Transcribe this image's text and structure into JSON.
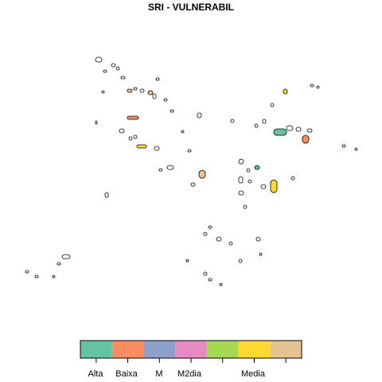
{
  "title": "SRI - VULNERABIL",
  "legend": {
    "classes": [
      {
        "name": "Alta",
        "color": "#66c2a5",
        "label": "Alta"
      },
      {
        "name": "Baixa",
        "color": "#fc8d62",
        "label": "Baixa"
      },
      {
        "name": "M",
        "color": "#8da0cb",
        "label": "M"
      },
      {
        "name": "M2dia",
        "color": "#e78ac3",
        "label": "M2dia"
      },
      {
        "name": "green",
        "color": "#a6d854",
        "label": ""
      },
      {
        "name": "Media",
        "color": "#ffd92f",
        "label": "Media"
      },
      {
        "name": "tan",
        "color": "#e5c494",
        "label": ""
      }
    ]
  },
  "colors": {
    "polygon_stroke": "#000000",
    "background": "#ffffff"
  }
}
